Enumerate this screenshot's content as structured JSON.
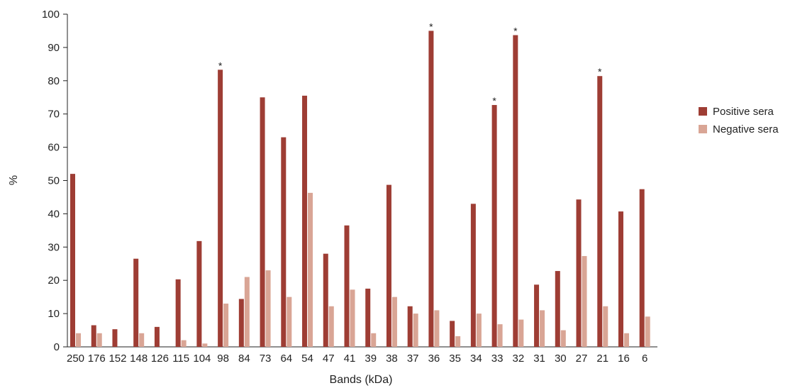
{
  "chart_data": {
    "type": "bar",
    "xlabel": "Bands (kDa)",
    "ylabel": "%",
    "ylim": [
      0,
      100
    ],
    "yticks": [
      0,
      10,
      20,
      30,
      40,
      50,
      60,
      70,
      80,
      90,
      100
    ],
    "grid": false,
    "legend_position": "right",
    "categories": [
      "250",
      "176",
      "152",
      "148",
      "126",
      "115",
      "104",
      "98",
      "84",
      "73",
      "64",
      "54",
      "47",
      "41",
      "39",
      "38",
      "37",
      "36",
      "35",
      "34",
      "33",
      "32",
      "31",
      "30",
      "27",
      "21",
      "16",
      "6"
    ],
    "series": [
      {
        "name": "Positive sera",
        "color": "#9e3d34",
        "values": [
          52,
          6.5,
          5.3,
          26.5,
          6,
          20.3,
          31.8,
          83.3,
          14.4,
          75,
          63,
          75.5,
          28,
          36.5,
          17.5,
          48.7,
          12.2,
          95,
          7.8,
          43,
          72.7,
          93.7,
          18.7,
          22.8,
          44.3,
          81.4,
          40.7,
          47.4
        ]
      },
      {
        "name": "Negative sera",
        "color": "#d9a595",
        "values": [
          4.1,
          4.1,
          0,
          4.1,
          0,
          2,
          1,
          13,
          21,
          23,
          15,
          46.3,
          12.2,
          17.2,
          4.1,
          15,
          10,
          11,
          3.2,
          10,
          6.8,
          8.2,
          11,
          5,
          27.3,
          12.2,
          4.1,
          9.1
        ]
      }
    ],
    "annotations": [
      {
        "category": "98",
        "text": "*"
      },
      {
        "category": "36",
        "text": "*"
      },
      {
        "category": "33",
        "text": "*"
      },
      {
        "category": "32",
        "text": "*"
      },
      {
        "category": "21",
        "text": "*"
      }
    ]
  }
}
